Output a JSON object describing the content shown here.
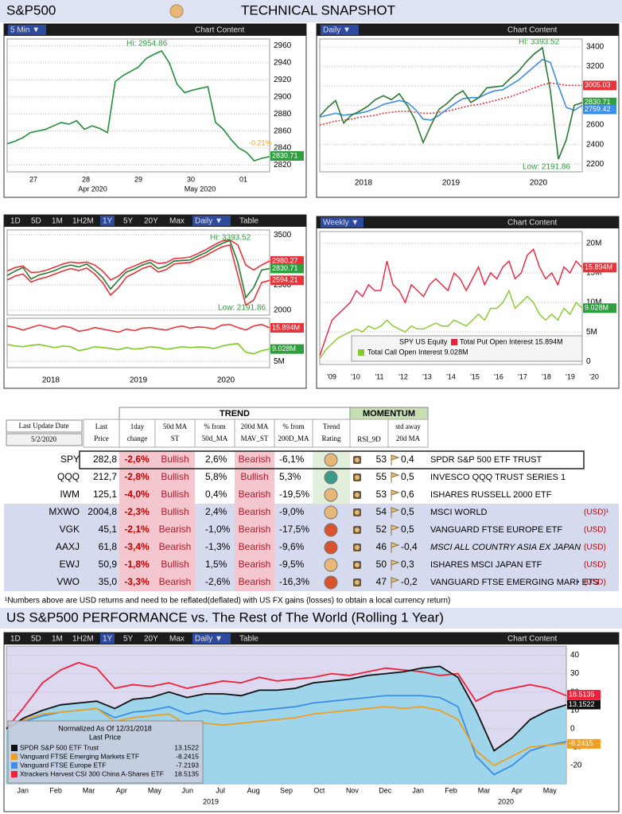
{
  "header": {
    "left": "S&P500",
    "dot_color": "#e8b87a",
    "title": "TECHNICAL SNAPSHOT"
  },
  "panels": [
    {
      "toolbar": [
        "5 Min ▼"
      ],
      "selected": [
        0
      ],
      "content": "Chart Content",
      "ylim": [
        2812,
        2968
      ],
      "yticks": [
        2820,
        2840,
        2860,
        2880,
        2900,
        2920,
        2940,
        2960
      ],
      "series": [
        {
          "color": "#1f8f3a",
          "values": [
            2845,
            2848,
            2852,
            2858,
            2860,
            2862,
            2866,
            2870,
            2868,
            2872,
            2862,
            2866,
            2863,
            2858,
            2918,
            2925,
            2930,
            2935,
            2945,
            2950,
            2954,
            2940,
            2915,
            2905,
            2908,
            2910,
            2912,
            2870,
            2862,
            2850,
            2840,
            2835,
            2825,
            2828,
            2830
          ]
        }
      ],
      "tags": [
        {
          "value": 2830.71,
          "label": "2830.71",
          "color": "#2e9e3e"
        }
      ],
      "notes": [
        "Hi: 2954.86",
        "-0.21%"
      ],
      "xlabels": [
        "27",
        "28",
        "29",
        "30",
        "01"
      ],
      "xlabels2": [
        "Apr 2020",
        "May 2020"
      ]
    },
    {
      "toolbar": [
        "Daily ▼"
      ],
      "selected": [
        0
      ],
      "content": "Chart Content",
      "ylim": [
        2120,
        3480
      ],
      "yticks": [
        2200,
        2400,
        2600,
        2800,
        3000,
        3200,
        3400
      ],
      "series": [
        {
          "color": "#e8333a",
          "dash": true,
          "values": [
            2600,
            2620,
            2640,
            2650,
            2660,
            2680,
            2690,
            2700,
            2720,
            2730,
            2740,
            2740,
            2730,
            2720,
            2720,
            2730,
            2740,
            2760,
            2780,
            2800,
            2810,
            2830,
            2850,
            2870,
            2890,
            2920,
            2950,
            2980,
            3010,
            3030,
            3020,
            3005,
            3005,
            3005
          ]
        },
        {
          "color": "#3a8ee6",
          "values": [
            2680,
            2700,
            2720,
            2700,
            2710,
            2720,
            2740,
            2770,
            2810,
            2830,
            2850,
            2830,
            2760,
            2660,
            2650,
            2700,
            2760,
            2820,
            2870,
            2880,
            2880,
            2920,
            2950,
            2960,
            3010,
            3060,
            3130,
            3200,
            3270,
            3240,
            3000,
            2780,
            2750,
            2800
          ]
        },
        {
          "color": "#2b7a33",
          "values": [
            2690,
            2780,
            2850,
            2620,
            2700,
            2740,
            2790,
            2860,
            2900,
            2860,
            2920,
            2800,
            2650,
            2420,
            2600,
            2760,
            2820,
            2900,
            2950,
            2830,
            2880,
            2980,
            2990,
            3000,
            3080,
            3150,
            3250,
            3330,
            3390,
            2950,
            2250,
            2450,
            2800,
            2830
          ]
        }
      ],
      "tags": [
        {
          "value": 3005.03,
          "label": "3005.03",
          "color": "#e8333a"
        },
        {
          "value": 2830.71,
          "label": "2830.71",
          "color": "#2e9e3e"
        },
        {
          "value": 2759.42,
          "label": "2759.42",
          "color": "#3a8ee6"
        }
      ],
      "notes": [
        "Hi: 3393.52",
        "Low: 2191.86"
      ],
      "xlabels": [
        "2018",
        "2019",
        "2020"
      ]
    },
    {
      "toolbar": [
        "1D",
        "5D",
        "1M",
        "1H2M",
        "1Y",
        "5Y",
        "20Y",
        "Max",
        "Daily ▼",
        "Table"
      ],
      "selected": [
        4,
        8
      ],
      "upper": {
        "ylim": [
          1900,
          3600
        ],
        "yticks": [
          2000,
          2500,
          3000,
          3500
        ],
        "series": [
          {
            "color": "#e8333a",
            "values": [
              2780,
              2850,
              2880,
              2750,
              2760,
              2800,
              2860,
              2920,
              2960,
              2940,
              2960,
              2900,
              2780,
              2600,
              2680,
              2820,
              2880,
              2950,
              3000,
              2930,
              2950,
              3030,
              3040,
              3060,
              3130,
              3210,
              3300,
              3380,
              3400,
              3300,
              2900,
              2800,
              2900,
              2980
            ]
          },
          {
            "color": "#e8333a",
            "values": [
              2600,
              2680,
              2720,
              2560,
              2620,
              2660,
              2720,
              2780,
              2830,
              2790,
              2840,
              2720,
              2550,
              2300,
              2450,
              2660,
              2740,
              2830,
              2880,
              2760,
              2810,
              2920,
              2940,
              2950,
              3020,
              3090,
              3180,
              3260,
              3300,
              2700,
              2100,
              2200,
              2550,
              2594
            ]
          },
          {
            "color": "#2b7a33",
            "values": [
              2690,
              2780,
              2850,
              2620,
              2700,
              2740,
              2790,
              2860,
              2900,
              2860,
              2920,
              2800,
              2650,
              2420,
              2600,
              2760,
              2820,
              2900,
              2950,
              2830,
              2880,
              2980,
              2990,
              3000,
              3080,
              3150,
              3250,
              3330,
              3390,
              2950,
              2250,
              2450,
              2800,
              2830
            ]
          }
        ],
        "tags": [
          {
            "value": 2980.27,
            "label": "2980.27",
            "color": "#e8333a"
          },
          {
            "value": 2830.71,
            "label": "2830.71",
            "color": "#2e9e3e"
          },
          {
            "value": 2594.21,
            "label": "2594.21",
            "color": "#e8333a"
          }
        ],
        "notes": [
          "Hi: 3393.52",
          "Low: 2191.86"
        ]
      },
      "lower": {
        "ylim": [
          3,
          19
        ],
        "yticks": [
          {
            "value": 5,
            "label": "5M"
          }
        ],
        "series": [
          {
            "color": "#e8333a",
            "values": [
              16.5,
              16,
              15.2,
              16,
              16.8,
              16.2,
              15.5,
              16.5,
              16,
              14.8,
              15.2,
              16,
              15.5,
              15,
              14.5,
              15.5,
              15,
              15.8,
              16,
              15.5,
              15.2,
              16,
              16.5,
              15.8,
              16.2,
              16,
              15.5,
              16.8,
              17,
              16,
              15.2,
              16.5,
              17,
              15.894
            ]
          },
          {
            "color": "#7ccc1e",
            "values": [
              10.5,
              10,
              9.8,
              10.2,
              10.5,
              10,
              9.5,
              10,
              9.8,
              8.5,
              9,
              9.8,
              9.5,
              9.2,
              8.8,
              9.5,
              9,
              9.2,
              9.8,
              9.5,
              9,
              9.3,
              9.8,
              9.5,
              9.7,
              9.6,
              9.2,
              10,
              10.5,
              10.8,
              8,
              7.5,
              8.5,
              9.028
            ]
          }
        ],
        "tags": [
          {
            "value": 15.894,
            "label": "15.894M",
            "color": "#e8333a"
          },
          {
            "value": 9.028,
            "label": "9.028M",
            "color": "#2e9e3e"
          }
        ]
      },
      "xlabels": [
        "2018",
        "2019",
        "2020"
      ]
    },
    {
      "toolbar": [
        "Weekly ▼"
      ],
      "selected": [
        0
      ],
      "content": "Chart Content",
      "ylim": [
        -0.5,
        22
      ],
      "yticks": [
        0,
        {
          "value": 5,
          "label": "5M"
        },
        {
          "value": 10,
          "label": "10M"
        },
        {
          "value": 15,
          "label": "15M"
        },
        {
          "value": 20,
          "label": "20M"
        }
      ],
      "series": [
        {
          "name": "Total Put Open Interest 15.894M",
          "color": "#f0203a",
          "values": [
            1,
            4,
            7,
            8,
            9,
            10,
            12,
            11,
            13,
            12,
            12,
            17,
            13,
            12,
            10,
            13,
            12,
            11,
            13,
            14,
            13,
            12,
            15,
            14,
            12,
            14,
            16,
            13,
            15,
            14,
            16,
            17,
            14,
            15,
            18,
            19,
            16,
            14,
            15,
            13,
            16,
            15,
            17,
            15.894
          ]
        },
        {
          "name": "Total Call Open Interest 9.028M",
          "color": "#86c928",
          "values": [
            0.5,
            2,
            3,
            4,
            4.5,
            5,
            5.5,
            5,
            6,
            5.5,
            6,
            7,
            6,
            5.5,
            5,
            6,
            5.5,
            5.5,
            6,
            6.5,
            6,
            6,
            7,
            6.5,
            6,
            7,
            8,
            7,
            9,
            9,
            10,
            12,
            9,
            10,
            11,
            10,
            8,
            7,
            8,
            7,
            9,
            8,
            10,
            9.028
          ]
        }
      ],
      "tags": [
        {
          "value": 15.894,
          "label": "15.894M",
          "color": "#e8333a"
        },
        {
          "value": 9.028,
          "label": "9.028M",
          "color": "#2e9e3e"
        }
      ],
      "legend_title": "SPY US Equity",
      "xlabels": [
        "'09",
        "'10",
        "'11",
        "'12",
        "'13",
        "'14",
        "'15",
        "'16",
        "'17",
        "'18",
        "'19",
        "'20"
      ]
    }
  ],
  "table": {
    "update_label": "Last Update Date",
    "update_date": "5/2/2020",
    "group_trend": "TREND",
    "group_momentum": "MOMENTUM",
    "headers": [
      [
        "Last",
        "Price"
      ],
      [
        "1day",
        "change"
      ],
      [
        "50d MA",
        "ST"
      ],
      [
        "% from",
        "50d_MA"
      ],
      [
        "200d MA",
        "MAV_ST"
      ],
      [
        "% from",
        "200D_MA"
      ],
      [
        "Trend",
        "Rating"
      ],
      [
        "RSI_9D"
      ],
      [
        "std away",
        "20d MA"
      ]
    ],
    "rows": [
      {
        "ticker": "SPY",
        "price": "282,8",
        "change": "-2,6%",
        "ma50": "Bullish",
        "pct50": "2,6%",
        "ma200": "Bearish",
        "pct200": "-6,1%",
        "trend_color": "#e8b87a",
        "rsi": 53,
        "std": "0,4",
        "name": "SPDR S&P 500 ETF TRUST"
      },
      {
        "ticker": "QQQ",
        "price": "212,7",
        "change": "-2,8%",
        "ma50": "Bullish",
        "pct50": "5,8%",
        "ma200": "Bullish",
        "pct200": "5,3%",
        "trend_color": "#3a9a8a",
        "rsi": 55,
        "std": "0,5",
        "name": "INVESCO QQQ TRUST SERIES 1"
      },
      {
        "ticker": "IWM",
        "price": "125,1",
        "change": "-4,0%",
        "ma50": "Bullish",
        "pct50": "0,4%",
        "ma200": "Bearish",
        "pct200": "-19,5%",
        "trend_color": "#e8b87a",
        "rsi": 53,
        "std": "0,6",
        "name": "ISHARES RUSSELL 2000 ETF"
      },
      {
        "ticker": "MXWO",
        "price": "2004,8",
        "change": "-2,3%",
        "ma50": "Bullish",
        "pct50": "2,4%",
        "ma200": "Bearish",
        "pct200": "-9,0%",
        "trend_color": "#e8b87a",
        "rsi": 54,
        "std": "0,5",
        "name": "MSCI WORLD",
        "ccy": "(USD)¹"
      },
      {
        "ticker": "VGK",
        "price": "45,1",
        "change": "-2,1%",
        "ma50": "Bearish",
        "pct50": "-1,0%",
        "ma200": "Bearish",
        "pct200": "-17,5%",
        "trend_color": "#d9542e",
        "rsi": 52,
        "std": "0,5",
        "name": "VANGUARD FTSE EUROPE ETF",
        "ccy": "(USD)"
      },
      {
        "ticker": "AAXJ",
        "price": "61,8",
        "change": "-3,4%",
        "ma50": "Bearish",
        "pct50": "-1,3%",
        "ma200": "Bearish",
        "pct200": "-9,6%",
        "trend_color": "#d9542e",
        "rsi": 46,
        "std": "-0,4",
        "name": "MSCI ALL COUNTRY ASIA EX JAPAN",
        "ccy": "(USD)",
        "italic": true
      },
      {
        "ticker": "EWJ",
        "price": "50,9",
        "change": "-1,8%",
        "ma50": "Bullish",
        "pct50": "1,5%",
        "ma200": "Bearish",
        "pct200": "-9,5%",
        "trend_color": "#e8b87a",
        "rsi": 50,
        "std": "0,3",
        "name": "ISHARES MSCI JAPAN ETF",
        "ccy": "(USD)"
      },
      {
        "ticker": "VWO",
        "price": "35,0",
        "change": "-3,3%",
        "ma50": "Bearish",
        "pct50": "-2,6%",
        "ma200": "Bearish",
        "pct200": "-16,3%",
        "trend_color": "#d9542e",
        "rsi": 47,
        "std": "-0,2",
        "name": "VANGUARD FTSE EMERGING MARKETS",
        "ccy": "(USD)"
      }
    ]
  },
  "footnote": "¹Numbers above are USD returns  and  need to be reflated(deflated) with US FX gains (losses) to obtain a local currency return)",
  "performance": {
    "title": "US S&P500 PERFORMANCE vs. The Rest of The World (Rolling 1 Year)",
    "toolbar": [
      "1D",
      "5D",
      "1M",
      "1H2M",
      "1Y",
      "5Y",
      "20Y",
      "Max",
      "Daily ▼",
      "Table"
    ],
    "selected": [
      4,
      8
    ],
    "content": "Chart Content",
    "ylim": [
      -30,
      45
    ],
    "yticks": [
      -20,
      -10,
      0,
      10,
      20,
      30,
      40
    ],
    "legend_title": "Normalized As Of 12/31/2018",
    "legend_sub": "Last Price",
    "series": [
      {
        "name": "SPDR S&P 500 ETF Trust",
        "color": "#111111",
        "last": "13.1522",
        "values": [
          0,
          6,
          10,
          13,
          14,
          15,
          11,
          16,
          17,
          20,
          17,
          19,
          19,
          18,
          21,
          21,
          22,
          25,
          26,
          27,
          29,
          30,
          31,
          33,
          34,
          28,
          10,
          -12,
          -5,
          5,
          10,
          13
        ]
      },
      {
        "name": "Vanguard FTSE Emerging Markets ETF",
        "color": "#f0a020",
        "last": "-8.2415",
        "values": [
          0,
          5,
          8,
          9,
          10,
          11,
          4,
          6,
          7,
          8,
          2,
          3,
          2,
          3,
          4,
          5,
          6,
          8,
          9,
          10,
          11,
          12,
          11,
          12,
          10,
          5,
          -12,
          -20,
          -15,
          -10,
          -9,
          -8
        ]
      },
      {
        "name": "Vanguard FTSE Europe ETF",
        "color": "#3a8ee6",
        "last": "-7.2193",
        "values": [
          0,
          4,
          7,
          9,
          10,
          11,
          6,
          9,
          10,
          12,
          8,
          10,
          8,
          9,
          10,
          11,
          12,
          14,
          15,
          16,
          17,
          18,
          18,
          18,
          17,
          12,
          -15,
          -25,
          -20,
          -12,
          -9,
          -7
        ]
      },
      {
        "name": "Xtrackers Harvest CSI 300 China A-Shares ETF",
        "color": "#f0203a",
        "last": "18.5135",
        "values": [
          0,
          12,
          25,
          32,
          36,
          33,
          22,
          24,
          23,
          25,
          22,
          24,
          26,
          25,
          28,
          26,
          27,
          28,
          30,
          29,
          31,
          33,
          32,
          31,
          29,
          30,
          15,
          20,
          22,
          24,
          22,
          18
        ]
      }
    ],
    "tags": [
      {
        "value": 18.5135,
        "label": "18.5135",
        "color": "#f0203a"
      },
      {
        "value": 13.1522,
        "label": "13.1522",
        "color": "#111111"
      },
      {
        "value": -8.2415,
        "label": "-8.2415",
        "color": "#f0a020"
      }
    ],
    "xlabels": [
      "Jan",
      "Feb",
      "Mar",
      "Apr",
      "May",
      "Jun",
      "Jul",
      "Aug",
      "Sep",
      "Oct",
      "Nov",
      "Dec",
      "Jan",
      "Feb",
      "Mar",
      "Apr",
      "May"
    ],
    "years": [
      "2019",
      "2020"
    ]
  }
}
